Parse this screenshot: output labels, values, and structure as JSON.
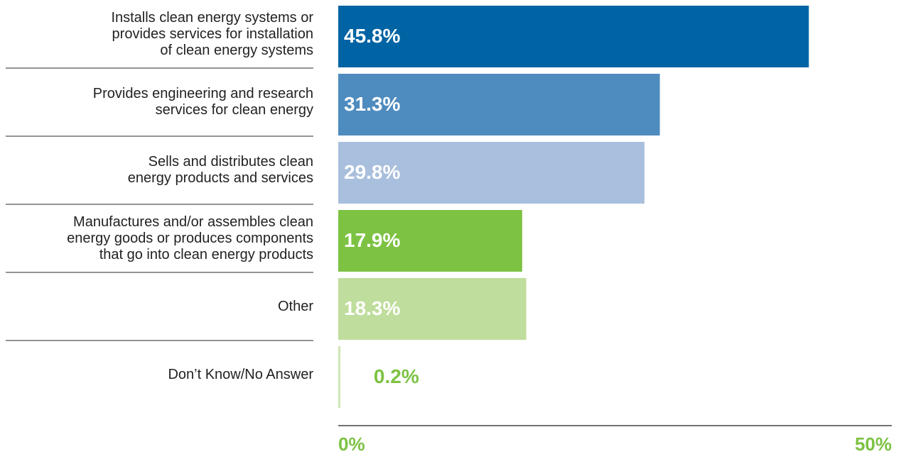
{
  "chart_data": {
    "type": "hbar",
    "categories": [
      "Installs clean energy systems or\nprovides services for installation\nof clean energy systems",
      "Provides engineering and research\nservices for clean energy",
      "Sells and distributes clean\nenergy products and services",
      "Manufactures and/or assembles clean\nenergy goods or produces components\nthat go into clean energy products",
      "Other",
      "Don’t Know/No Answer"
    ],
    "values": [
      45.8,
      31.3,
      29.8,
      17.9,
      18.3,
      0.2
    ],
    "value_labels": [
      "45.8%",
      "31.3%",
      "29.8%",
      "17.9%",
      "18.3%",
      "0.2%"
    ],
    "colors": [
      "#0064a4",
      "#4e8bbf",
      "#a8bfdd",
      "#7dc243",
      "#bfdd9c",
      "#cfe6b6"
    ],
    "xlim": [
      0,
      50
    ],
    "xticks": [
      {
        "value": 0,
        "label": "0%"
      },
      {
        "value": 50,
        "label": "50%"
      }
    ],
    "tick_color": "#7dc243"
  }
}
